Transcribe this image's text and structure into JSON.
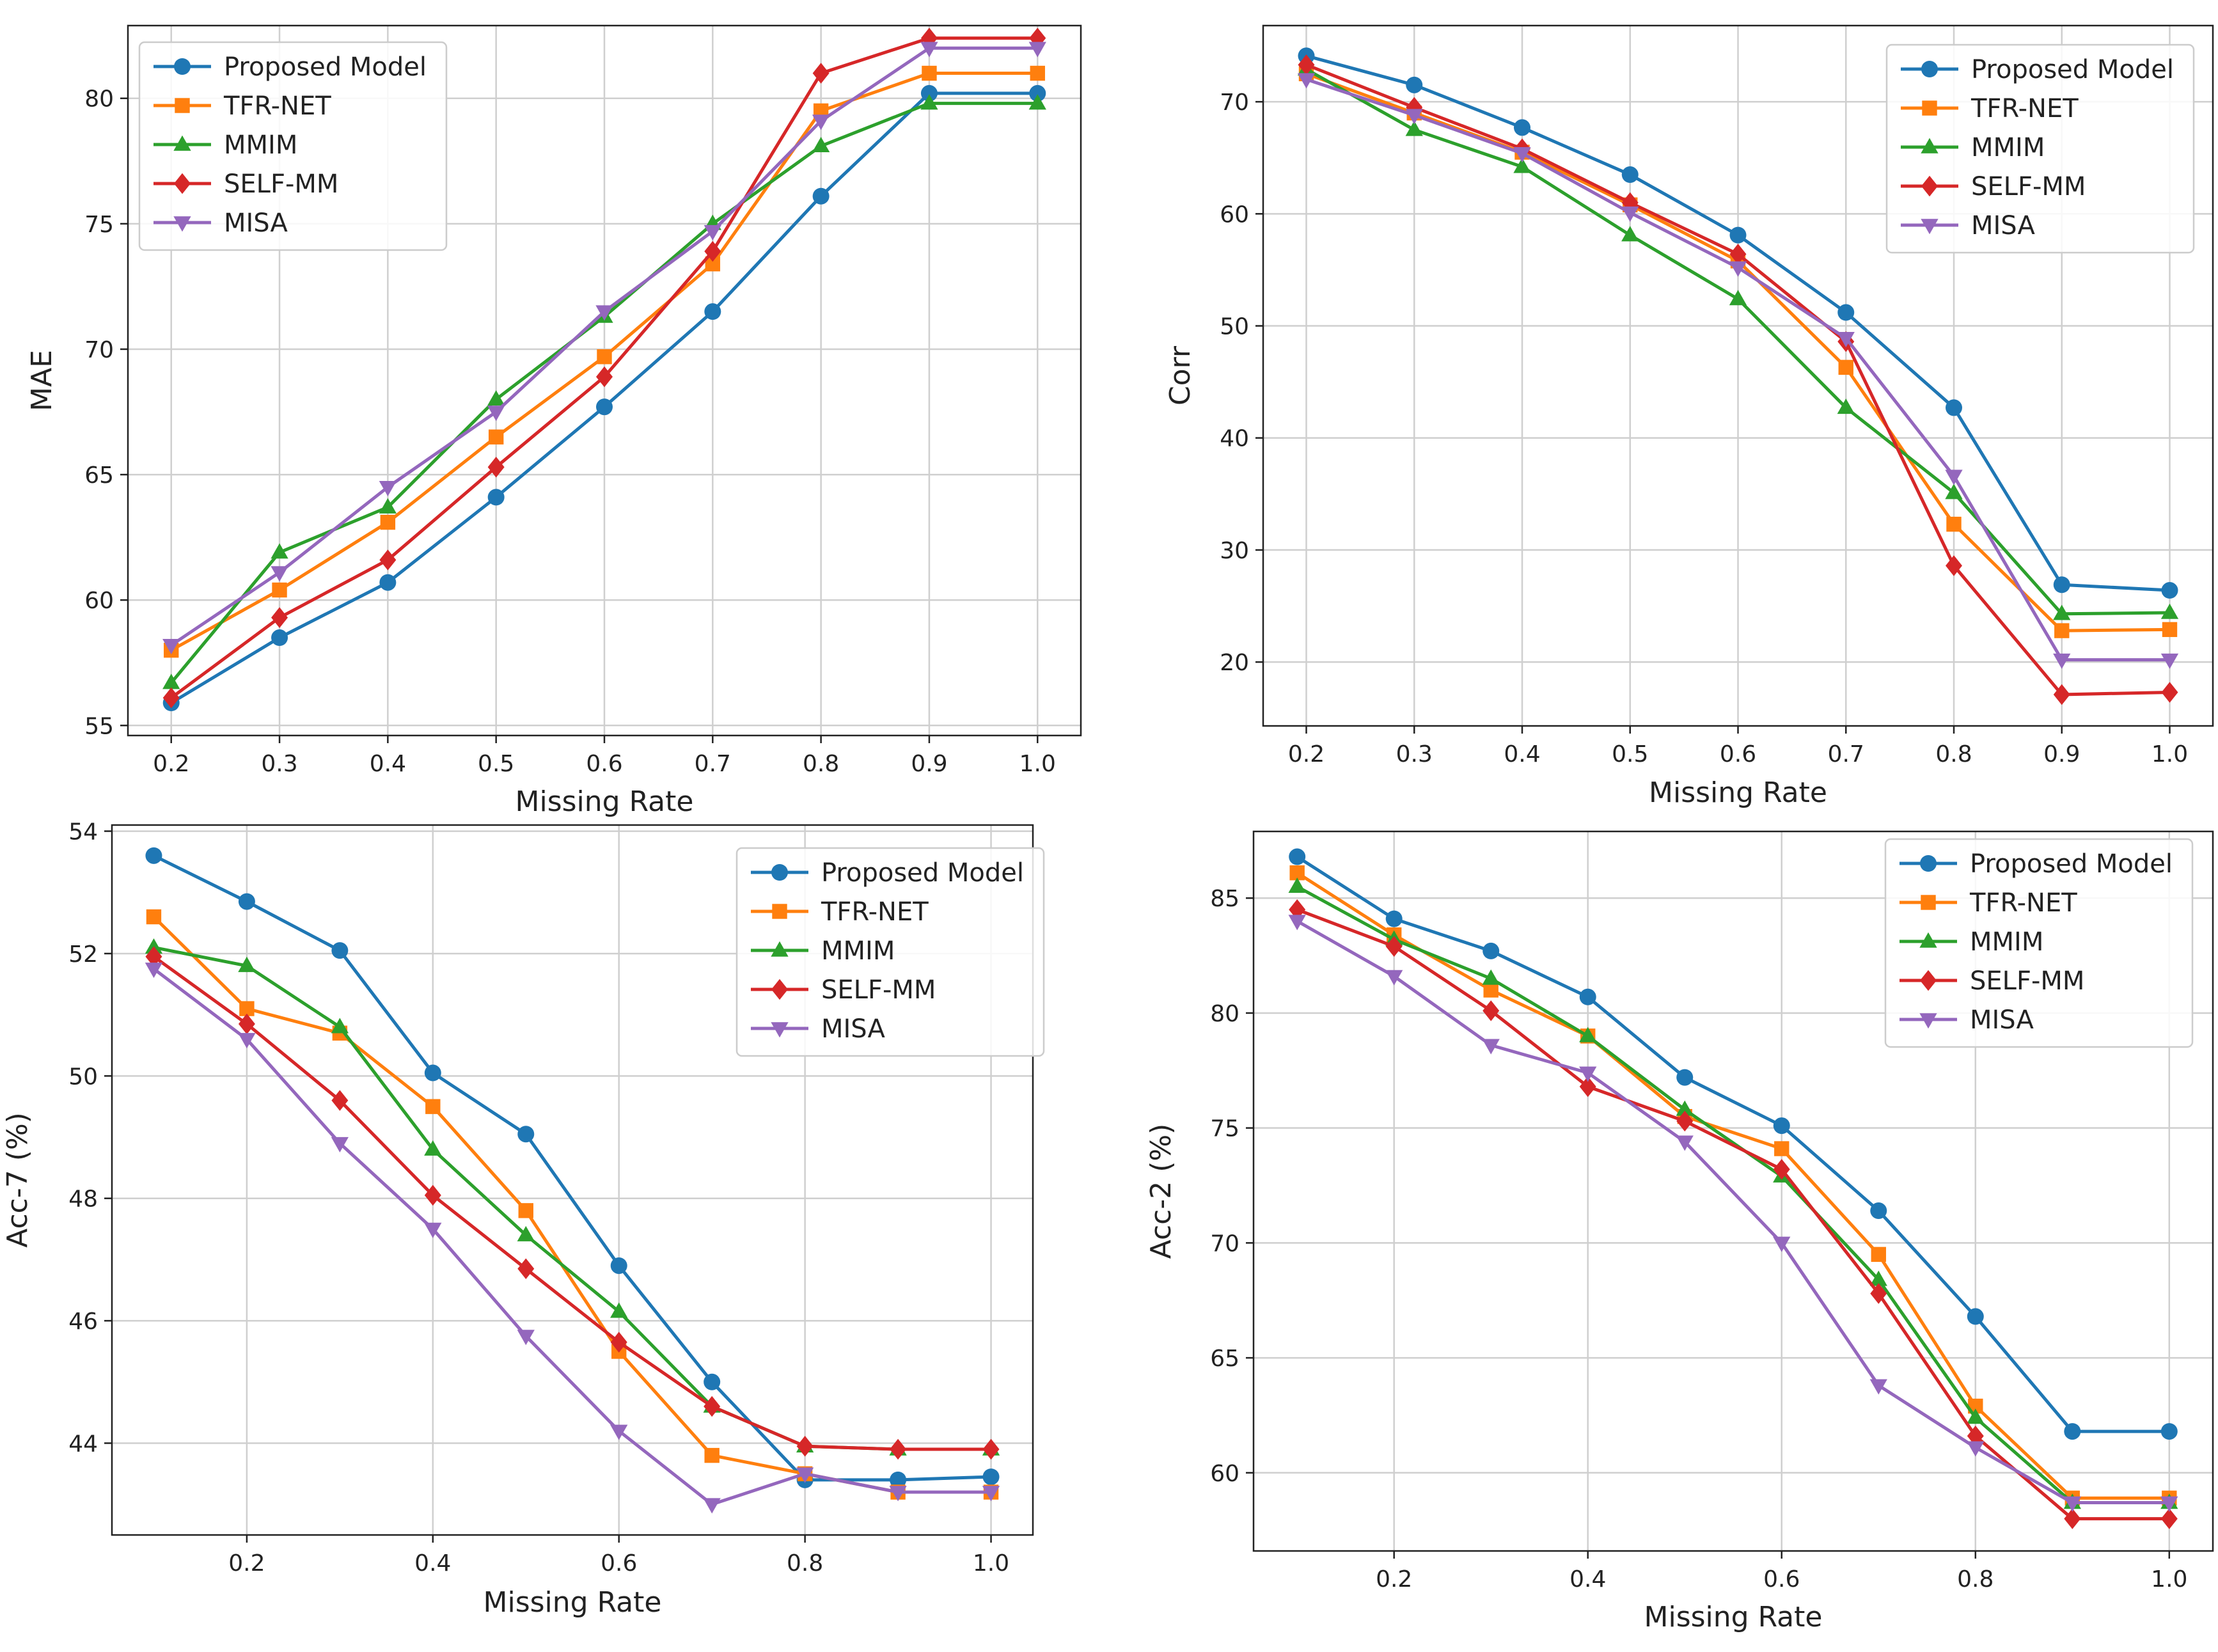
{
  "chart_data": [
    {
      "type": "line",
      "xlabel": "Missing Rate",
      "ylabel": "MAE",
      "x": [
        0.2,
        0.3,
        0.4,
        0.5,
        0.6,
        0.7,
        0.8,
        0.9,
        1.0
      ],
      "xticks": [
        0.2,
        0.3,
        0.4,
        0.5,
        0.6,
        0.7,
        0.8,
        0.9,
        1.0
      ],
      "xtick_labels": [
        "0.2",
        "0.3",
        "0.4",
        "0.5",
        "0.6",
        "0.7",
        "0.8",
        "0.9",
        "1.0"
      ],
      "yticks": [
        55,
        60,
        65,
        70,
        75,
        80
      ],
      "ytick_labels": [
        "55",
        "60",
        "65",
        "70",
        "75",
        "80"
      ],
      "xlim": [
        0.16,
        1.04
      ],
      "ylim": [
        54.6,
        82.9
      ],
      "grid": true,
      "legend": "top-left",
      "series": [
        {
          "name": "Proposed Model",
          "color": "#1f77b4",
          "marker": "circle",
          "values": [
            55.9,
            58.5,
            60.7,
            64.1,
            67.7,
            71.5,
            76.1,
            80.2,
            80.2
          ]
        },
        {
          "name": "TFR-NET",
          "color": "#ff7f0e",
          "marker": "square",
          "values": [
            58.0,
            60.4,
            63.1,
            66.5,
            69.7,
            73.4,
            79.5,
            81.0,
            81.0
          ]
        },
        {
          "name": "MMIM",
          "color": "#2ca02c",
          "marker": "triangle-up",
          "values": [
            56.7,
            61.9,
            63.7,
            68.0,
            71.3,
            75.0,
            78.1,
            79.8,
            79.8
          ]
        },
        {
          "name": "SELF-MM",
          "color": "#d62728",
          "marker": "diamond",
          "values": [
            56.1,
            59.3,
            61.6,
            65.3,
            68.9,
            73.9,
            81.0,
            82.4,
            82.4
          ]
        },
        {
          "name": "MISA",
          "color": "#9467bd",
          "marker": "triangle-down",
          "values": [
            58.2,
            61.1,
            64.5,
            67.5,
            71.5,
            74.7,
            79.1,
            82.0,
            82.0
          ]
        }
      ]
    },
    {
      "type": "line",
      "xlabel": "Missing Rate",
      "ylabel": "Corr",
      "x": [
        0.2,
        0.3,
        0.4,
        0.5,
        0.6,
        0.7,
        0.8,
        0.9,
        1.0
      ],
      "xticks": [
        0.2,
        0.3,
        0.4,
        0.5,
        0.6,
        0.7,
        0.8,
        0.9,
        1.0
      ],
      "xtick_labels": [
        "0.2",
        "0.3",
        "0.4",
        "0.5",
        "0.6",
        "0.7",
        "0.8",
        "0.9",
        "1.0"
      ],
      "yticks": [
        20,
        30,
        40,
        50,
        60,
        70
      ],
      "ytick_labels": [
        "20",
        "30",
        "40",
        "50",
        "60",
        "70"
      ],
      "xlim": [
        0.16,
        1.04
      ],
      "ylim": [
        14.3,
        76.8
      ],
      "grid": true,
      "legend": "top-right",
      "series": [
        {
          "name": "Proposed Model",
          "color": "#1f77b4",
          "marker": "circle",
          "values": [
            74.1,
            71.5,
            67.7,
            63.5,
            58.1,
            51.2,
            42.7,
            26.9,
            26.4
          ]
        },
        {
          "name": "TFR-NET",
          "color": "#ff7f0e",
          "marker": "square",
          "values": [
            72.5,
            69.0,
            65.5,
            60.8,
            55.8,
            46.3,
            32.3,
            22.8,
            22.9
          ]
        },
        {
          "name": "MMIM",
          "color": "#2ca02c",
          "marker": "triangle-up",
          "values": [
            72.9,
            67.5,
            64.2,
            58.1,
            52.4,
            42.7,
            35.1,
            24.3,
            24.4
          ]
        },
        {
          "name": "SELF-MM",
          "color": "#d62728",
          "marker": "diamond",
          "values": [
            73.3,
            69.5,
            65.8,
            61.0,
            56.4,
            48.6,
            28.6,
            17.1,
            17.3
          ]
        },
        {
          "name": "MISA",
          "color": "#9467bd",
          "marker": "triangle-down",
          "values": [
            72.0,
            68.8,
            65.4,
            60.1,
            55.2,
            48.9,
            36.6,
            20.2,
            20.2
          ]
        }
      ]
    },
    {
      "type": "line",
      "xlabel": "Missing Rate",
      "ylabel": "Acc-7 (%)",
      "x": [
        0.1,
        0.2,
        0.3,
        0.4,
        0.5,
        0.6,
        0.7,
        0.8,
        0.9,
        1.0
      ],
      "xticks": [
        0.2,
        0.4,
        0.6,
        0.8,
        1.0
      ],
      "xtick_labels": [
        "0.2",
        "0.4",
        "0.6",
        "0.8",
        "1.0"
      ],
      "yticks": [
        44,
        46,
        48,
        50,
        52,
        54
      ],
      "ytick_labels": [
        "44",
        "46",
        "48",
        "50",
        "52",
        "54"
      ],
      "xlim": [
        0.055,
        1.045
      ],
      "ylim": [
        42.5,
        54.1
      ],
      "grid": true,
      "legend": "top-right",
      "series": [
        {
          "name": "Proposed Model",
          "color": "#1f77b4",
          "marker": "circle",
          "values": [
            53.6,
            52.85,
            52.05,
            50.05,
            49.05,
            46.9,
            45.0,
            43.4,
            43.4,
            43.45
          ]
        },
        {
          "name": "TFR-NET",
          "color": "#ff7f0e",
          "marker": "square",
          "values": [
            52.6,
            51.1,
            50.7,
            49.5,
            47.8,
            45.5,
            43.8,
            43.5,
            43.2,
            43.2
          ]
        },
        {
          "name": "MMIM",
          "color": "#2ca02c",
          "marker": "triangle-up",
          "values": [
            52.1,
            51.8,
            50.8,
            48.8,
            47.4,
            46.15,
            44.6,
            43.95,
            43.9,
            43.9
          ]
        },
        {
          "name": "SELF-MM",
          "color": "#d62728",
          "marker": "diamond",
          "values": [
            51.95,
            50.85,
            49.6,
            48.05,
            46.85,
            45.65,
            44.6,
            43.95,
            43.9,
            43.9
          ]
        },
        {
          "name": "MISA",
          "color": "#9467bd",
          "marker": "triangle-down",
          "values": [
            51.75,
            50.6,
            48.9,
            47.5,
            45.75,
            44.2,
            43.0,
            43.5,
            43.2,
            43.2
          ]
        }
      ]
    },
    {
      "type": "line",
      "xlabel": "Missing Rate",
      "ylabel": "Acc-2 (%)",
      "x": [
        0.1,
        0.2,
        0.3,
        0.4,
        0.5,
        0.6,
        0.7,
        0.8,
        0.9,
        1.0
      ],
      "xticks": [
        0.2,
        0.4,
        0.6,
        0.8,
        1.0
      ],
      "xtick_labels": [
        "0.2",
        "0.4",
        "0.6",
        "0.8",
        "1.0"
      ],
      "yticks": [
        60,
        65,
        70,
        75,
        80,
        85
      ],
      "ytick_labels": [
        "60",
        "65",
        "70",
        "75",
        "80",
        "85"
      ],
      "xlim": [
        0.055,
        1.045
      ],
      "ylim": [
        56.6,
        87.9
      ],
      "grid": true,
      "legend": "top-right",
      "series": [
        {
          "name": "Proposed Model",
          "color": "#1f77b4",
          "marker": "circle",
          "values": [
            86.8,
            84.1,
            82.7,
            80.7,
            77.2,
            75.1,
            71.4,
            66.8,
            61.8,
            61.8
          ]
        },
        {
          "name": "TFR-NET",
          "color": "#ff7f0e",
          "marker": "square",
          "values": [
            86.1,
            83.4,
            81.0,
            79.0,
            75.5,
            74.1,
            69.5,
            62.9,
            58.9,
            58.9
          ]
        },
        {
          "name": "MMIM",
          "color": "#2ca02c",
          "marker": "triangle-up",
          "values": [
            85.5,
            83.2,
            81.5,
            79.0,
            75.8,
            72.9,
            68.4,
            62.4,
            58.7,
            58.7
          ]
        },
        {
          "name": "SELF-MM",
          "color": "#d62728",
          "marker": "diamond",
          "values": [
            84.5,
            82.9,
            80.1,
            76.8,
            75.3,
            73.2,
            67.8,
            61.6,
            58.0,
            58.0
          ]
        },
        {
          "name": "MISA",
          "color": "#9467bd",
          "marker": "triangle-down",
          "values": [
            84.0,
            81.6,
            78.6,
            77.4,
            74.4,
            70.0,
            63.8,
            61.1,
            58.7,
            58.7
          ]
        }
      ]
    }
  ]
}
